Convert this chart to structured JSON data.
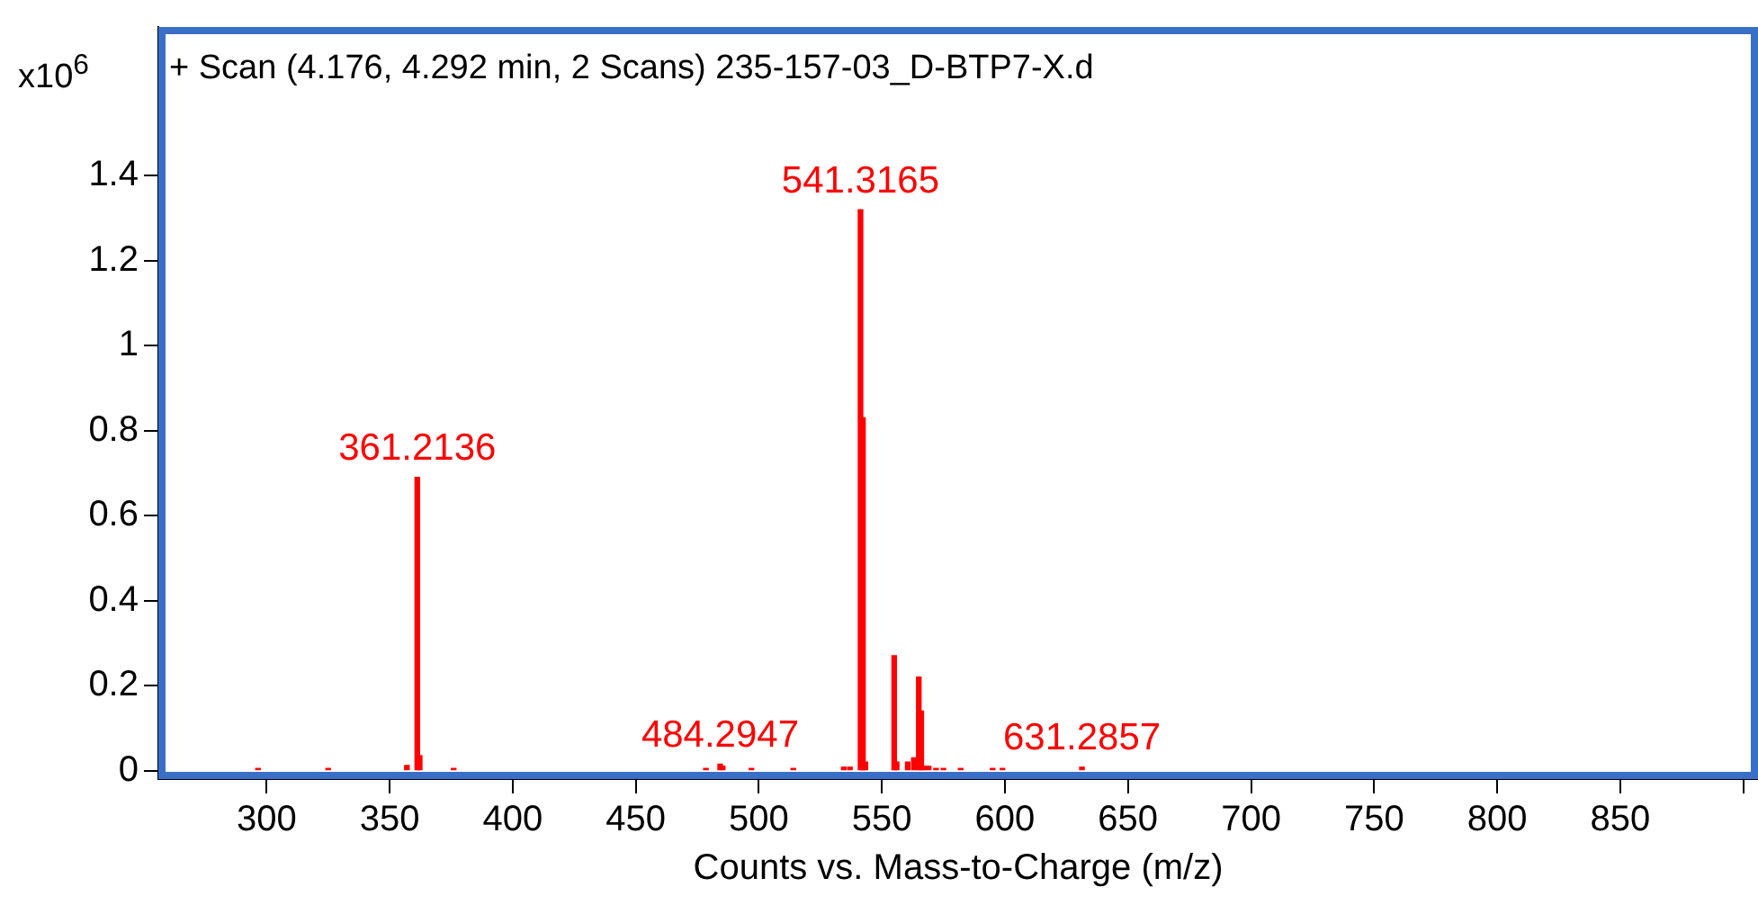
{
  "chart_data": {
    "type": "bar",
    "title": "+ Scan (4.176, 4.292 min, 2 Scans) 235-157-03_D-BTP7-X.d",
    "xlabel": "Counts vs. Mass-to-Charge (m/z)",
    "ylabel": "x10$^{6}$",
    "x": [
      296.5,
      325,
      357,
      361.2136,
      362.2,
      376,
      478.5,
      484.2947,
      485.3,
      497,
      514,
      534.5,
      537,
      541.3165,
      542.3,
      543.3,
      555,
      556,
      560.5,
      563,
      565,
      566,
      567,
      569,
      572,
      575,
      582,
      595,
      599,
      631.2857
    ],
    "values": [
      0.005,
      0.005,
      0.012,
      0.69,
      0.035,
      0.005,
      0.005,
      0.015,
      0.01,
      0.005,
      0.005,
      0.008,
      0.008,
      1.32,
      0.83,
      0.02,
      0.27,
      0.02,
      0.02,
      0.03,
      0.22,
      0.14,
      0.01,
      0.01,
      0.005,
      0.005,
      0.005,
      0.005,
      0.005,
      0.008
    ],
    "color": "#ff0000",
    "xlim": [
      256,
      906
    ],
    "xticks": [
      300,
      350,
      400,
      450,
      500,
      550,
      600,
      650,
      700,
      750,
      800,
      850,
      {
        "value": 900,
        "label": null
      }
    ],
    "ylim": [
      -0.02,
      1.75
    ],
    "yticks": [
      0,
      0.2,
      0.4,
      0.6,
      0.8,
      1,
      1.2,
      1.4
    ],
    "grid": false,
    "legend": false,
    "annotations": [
      {
        "text": "361.2136",
        "x": 361.2136,
        "y": 0.69
      },
      {
        "text": "484.2947",
        "x": 484.2947,
        "y": 0.015
      },
      {
        "text": "541.3165",
        "x": 541.3165,
        "y": 1.32
      },
      {
        "text": "631.2857",
        "x": 631.2857,
        "y": 0.008
      }
    ]
  }
}
